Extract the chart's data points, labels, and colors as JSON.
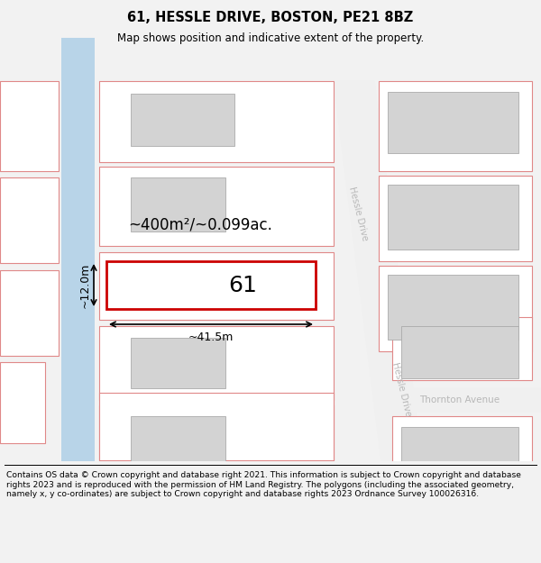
{
  "title": "61, HESSLE DRIVE, BOSTON, PE21 8BZ",
  "subtitle": "Map shows position and indicative extent of the property.",
  "footer": "Contains OS data © Crown copyright and database right 2021. This information is subject to Crown copyright and database rights 2023 and is reproduced with the permission of HM Land Registry. The polygons (including the associated geometry, namely x, y co-ordinates) are subject to Crown copyright and database rights 2023 Ordnance Survey 100026316.",
  "bg_color": "#f2f2f2",
  "map_bg": "#ffffff",
  "area_label": "~400m²/~0.099ac.",
  "width_label": "~41.5m",
  "height_label": "~12.0m",
  "plot_number": "61",
  "building_color": "#d3d3d3",
  "building_edge": "#aaaaaa",
  "plot_outline_color": "#cc0000",
  "boundary_color": "#e08888",
  "blue_strip_color": "#b8d4e8",
  "road_text_color": "#b8b8b8",
  "footer_line_color": "#000000",
  "annotation_color": "#000000"
}
